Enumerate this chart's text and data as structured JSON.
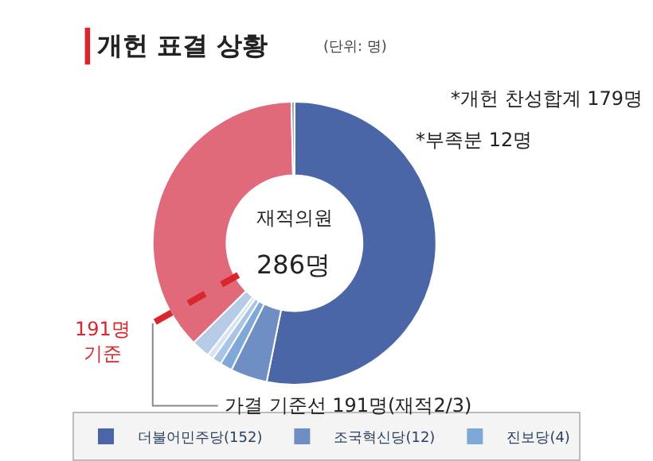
{
  "chart_data": {
    "type": "donut",
    "title": "개헌 표결 상황",
    "subtitle": "(단위: 명)",
    "categories": [
      "더불어민주당(152)",
      "조국혁신당(12)",
      "진보당(4)",
      null,
      null,
      null,
      null,
      null
    ],
    "values": [
      152,
      12,
      4,
      3,
      2,
      6,
      106,
      1
    ],
    "colors": [
      "#4a66a6",
      "#6f8fc4",
      "#7fa8d8",
      "#a9c4e6",
      "#d6e3f2",
      "#b5cbe6",
      "#e06a7a",
      "#9a9a9a"
    ],
    "legend": "bottom",
    "annotations": [
      "*개헌 찬성합계 179명",
      "*부족분 12명",
      "재적의원",
      "286명",
      "가결 기준선 191명(재적2/3)",
      "191명\n기준"
    ]
  }
}
